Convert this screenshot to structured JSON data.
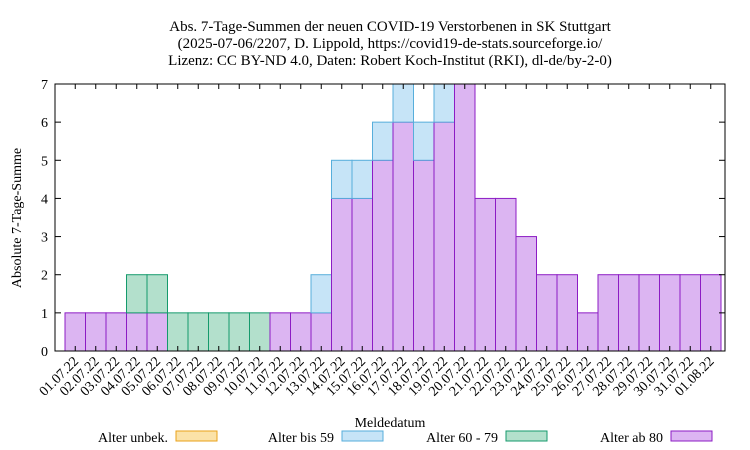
{
  "chart_data": {
    "type": "bar",
    "stacked": true,
    "title": [
      "Abs. 7-Tage-Summen der neuen COVID-19 Verstorbenen in SK Stuttgart",
      "(2025-07-06/2207, D. Lippold, https://covid19-de-stats.sourceforge.io/",
      "Lizenz: CC BY-ND 4.0, Daten: Robert Koch-Institut (RKI), dl-de/by-2-0)"
    ],
    "xlabel": "Meldedatum",
    "ylabel": "Absolute 7-Tage-Summe",
    "ylim": [
      0,
      7
    ],
    "yticks": [
      0,
      1,
      2,
      3,
      4,
      5,
      6,
      7
    ],
    "grid": false,
    "legend_position": "bottom",
    "categories": [
      "01.07.22",
      "02.07.22",
      "03.07.22",
      "04.07.22",
      "05.07.22",
      "06.07.22",
      "07.07.22",
      "08.07.22",
      "09.07.22",
      "10.07.22",
      "11.07.22",
      "12.07.22",
      "13.07.22",
      "14.07.22",
      "15.07.22",
      "16.07.22",
      "17.07.22",
      "18.07.22",
      "19.07.22",
      "20.07.22",
      "21.07.22",
      "22.07.22",
      "23.07.22",
      "24.07.22",
      "25.07.22",
      "26.07.22",
      "27.07.22",
      "28.07.22",
      "29.07.22",
      "30.07.22",
      "31.07.22",
      "01.08.22"
    ],
    "series": [
      {
        "name": "Alter ab 80",
        "fill": "#dcb5f2",
        "stroke": "#8c1cc4",
        "values": [
          1,
          1,
          1,
          1,
          1,
          0,
          0,
          0,
          0,
          0,
          1,
          1,
          1,
          4,
          4,
          5,
          6,
          5,
          6,
          7,
          4,
          4,
          3,
          2,
          2,
          1,
          2,
          2,
          2,
          2,
          2,
          2
        ]
      },
      {
        "name": "Alter 60 - 79",
        "fill": "#b3e0cc",
        "stroke": "#159a6c",
        "values": [
          0,
          0,
          0,
          1,
          1,
          1,
          1,
          1,
          1,
          1,
          0,
          0,
          0,
          0,
          0,
          0,
          0,
          0,
          0,
          0,
          0,
          0,
          0,
          0,
          0,
          0,
          0,
          0,
          0,
          0,
          0,
          0
        ]
      },
      {
        "name": "Alter bis 59",
        "fill": "#c6e4f7",
        "stroke": "#57aedb",
        "values": [
          0,
          0,
          0,
          0,
          0,
          0,
          0,
          0,
          0,
          0,
          0,
          0,
          1,
          1,
          1,
          1,
          1,
          1,
          1,
          0,
          0,
          0,
          0,
          0,
          0,
          0,
          0,
          0,
          0,
          0,
          0,
          0
        ]
      },
      {
        "name": "Alter unbek.",
        "fill": "#fbe2a8",
        "stroke": "#e9a21a",
        "values": [
          0,
          0,
          0,
          0,
          0,
          0,
          0,
          0,
          0,
          0,
          0,
          0,
          0,
          0,
          0,
          0,
          0,
          0,
          0,
          0,
          0,
          0,
          0,
          0,
          0,
          0,
          0,
          0,
          0,
          0,
          0,
          0
        ]
      }
    ],
    "legend_order": [
      "Alter unbek.",
      "Alter bis 59",
      "Alter 60 - 79",
      "Alter ab 80"
    ]
  }
}
